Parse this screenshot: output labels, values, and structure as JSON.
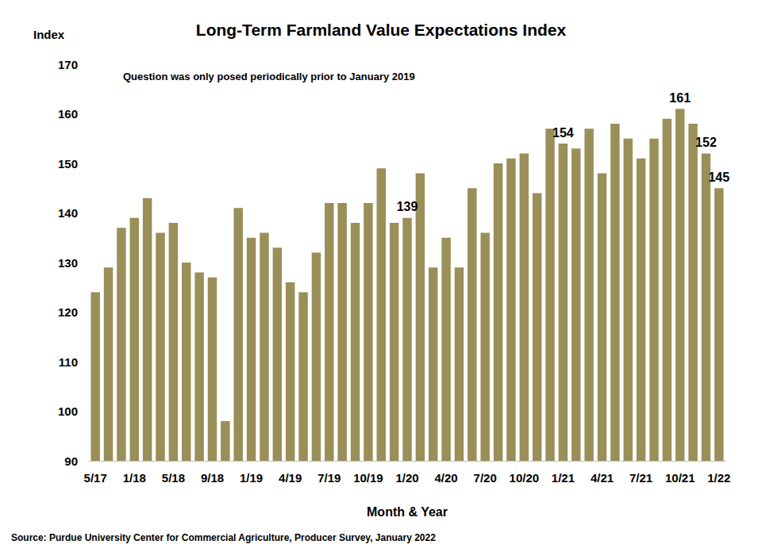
{
  "chart_data": {
    "type": "bar",
    "title": "Long-Term Farmland Value Expectations Index",
    "y_label": "Index",
    "x_label": "Month & Year",
    "annotations": [
      "Question was only posed periodically prior to January 2019"
    ],
    "source": "Source: Purdue University Center for Commercial Agriculture, Producer Survey, January 2022",
    "categories": [
      "5/17",
      null,
      null,
      "1/18",
      null,
      null,
      "5/18",
      null,
      null,
      "9/18",
      null,
      null,
      "1/19",
      null,
      null,
      "4/19",
      null,
      null,
      "7/19",
      null,
      null,
      "10/19",
      null,
      null,
      "1/20",
      null,
      null,
      "4/20",
      null,
      null,
      "7/20",
      null,
      null,
      "10/20",
      null,
      null,
      "1/21",
      null,
      null,
      "4/21",
      null,
      null,
      "7/21",
      null,
      null,
      "10/21",
      null,
      null,
      "1/22"
    ],
    "values": [
      124,
      129,
      137,
      139,
      143,
      136,
      138,
      130,
      128,
      127,
      98,
      141,
      135,
      136,
      133,
      126,
      124,
      132,
      142,
      142,
      138,
      142,
      149,
      138,
      139,
      148,
      129,
      135,
      129,
      145,
      136,
      150,
      151,
      152,
      144,
      157,
      154,
      153,
      157,
      148,
      158,
      155,
      151,
      155,
      159,
      161,
      158,
      152,
      145
    ],
    "value_labels": [
      null,
      null,
      null,
      null,
      null,
      null,
      null,
      null,
      null,
      null,
      null,
      null,
      null,
      null,
      null,
      null,
      null,
      null,
      null,
      null,
      null,
      null,
      null,
      null,
      "139",
      null,
      null,
      null,
      null,
      null,
      null,
      null,
      null,
      null,
      null,
      null,
      "154",
      null,
      null,
      null,
      null,
      null,
      null,
      null,
      null,
      "161",
      null,
      "152",
      "145"
    ],
    "color": "#9a8f58",
    "ylim": [
      90,
      170
    ],
    "yticks": [
      90,
      100,
      110,
      120,
      130,
      140,
      150,
      160,
      170
    ],
    "grid": false
  }
}
